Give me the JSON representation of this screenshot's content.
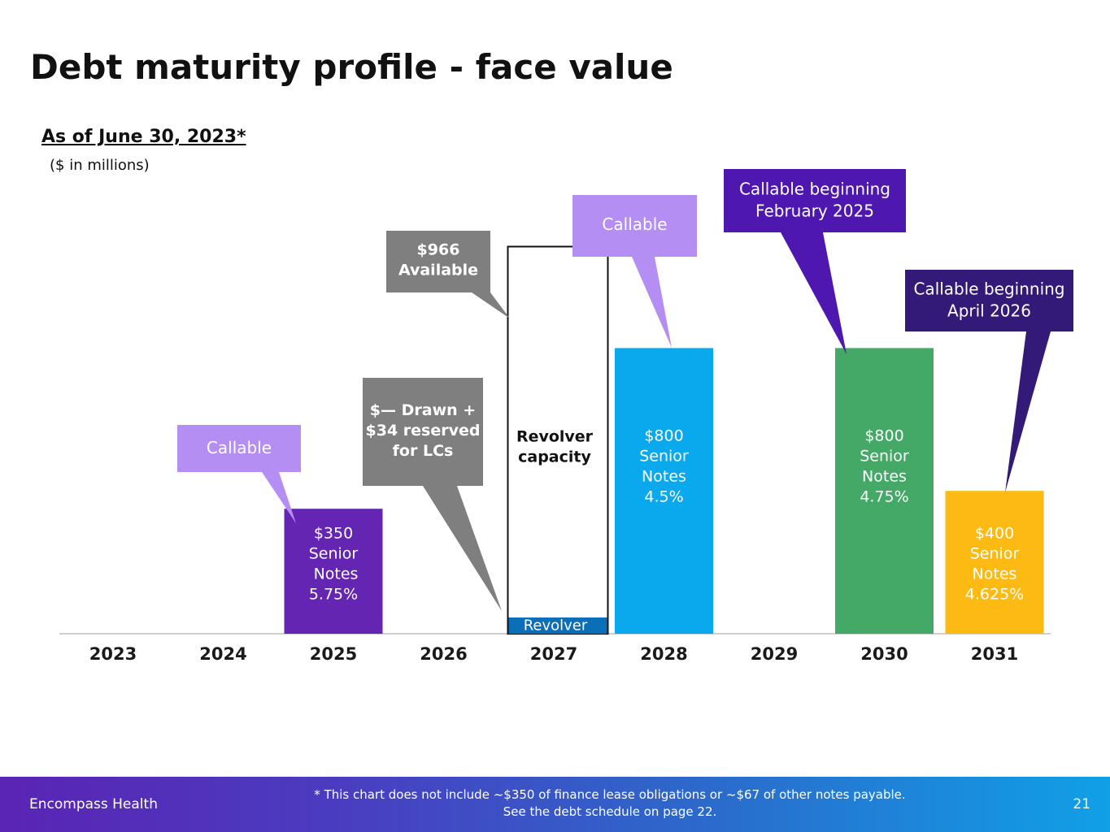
{
  "title": "Debt maturity profile - face value",
  "subtitle": "As of June 30, 2023*",
  "units": "($ in millions)",
  "chart_data": {
    "type": "bar",
    "categories": [
      "2023",
      "2024",
      "2025",
      "2026",
      "2027",
      "2028",
      "2029",
      "2030",
      "2031"
    ],
    "ylim": [
      0,
      1200
    ],
    "series": [
      {
        "name": "Senior Notes",
        "values": [
          0,
          0,
          350,
          0,
          0,
          800,
          0,
          800,
          400
        ]
      },
      {
        "name": "Revolver drawn + LCs",
        "values": [
          0,
          0,
          0,
          0,
          34,
          0,
          0,
          0,
          0
        ]
      },
      {
        "name": "Revolver capacity",
        "values": [
          0,
          0,
          0,
          0,
          1000,
          0,
          0,
          0,
          0
        ]
      }
    ],
    "bars": [
      {
        "category": "2025",
        "value": 350,
        "label": "$350\nSenior\n Notes\n5.75%",
        "color": "#6425b3",
        "text_color": "#ffffff"
      },
      {
        "category": "2027",
        "value": 1000,
        "label": "Revolver\ncapacity",
        "color": "none",
        "text_color": "#111111",
        "style": "outline",
        "bold": true
      },
      {
        "category": "2027",
        "value": 34,
        "label": "Revolver",
        "color": "#0b6fb8",
        "text_color": "#ffffff"
      },
      {
        "category": "2028",
        "value": 800,
        "label": "$800\nSenior\nNotes\n4.5%",
        "color": "#0aa8ec",
        "text_color": "#ffffff"
      },
      {
        "category": "2030",
        "value": 800,
        "label": "$800\nSenior\nNotes\n4.75%",
        "color": "#44a866",
        "text_color": "#ffffff"
      },
      {
        "category": "2031",
        "value": 400,
        "label": "$400\nSenior\nNotes\n4.625%",
        "color": "#fcba12",
        "text_color": "#ffffff"
      }
    ],
    "annotations": [
      {
        "text": "Callable",
        "color": "#b48ef2",
        "bold": false,
        "target": "2025"
      },
      {
        "text": "$— Drawn +\n$34 reserved\nfor LCs",
        "color": "#7f7f7f",
        "bold": true,
        "target": "2027 revolver drawn"
      },
      {
        "text": "$966\nAvailable",
        "color": "#7f7f7f",
        "bold": true,
        "target": "2027 revolver capacity"
      },
      {
        "text": "Callable",
        "color": "#b48ef2",
        "bold": false,
        "target": "2028"
      },
      {
        "text": "Callable beginning\nFebruary 2025",
        "color": "#4e17b0",
        "bold": false,
        "target": "2030"
      },
      {
        "text": "Callable beginning\nApril 2026",
        "color": "#341a78",
        "bold": false,
        "target": "2031"
      }
    ]
  },
  "footer": {
    "brand": "Encompass Health",
    "note_line1": "* This chart does not include ~$350 of finance lease obligations or ~$67 of other notes payable.",
    "note_line2": "See the debt schedule on page 22.",
    "page": "21"
  }
}
